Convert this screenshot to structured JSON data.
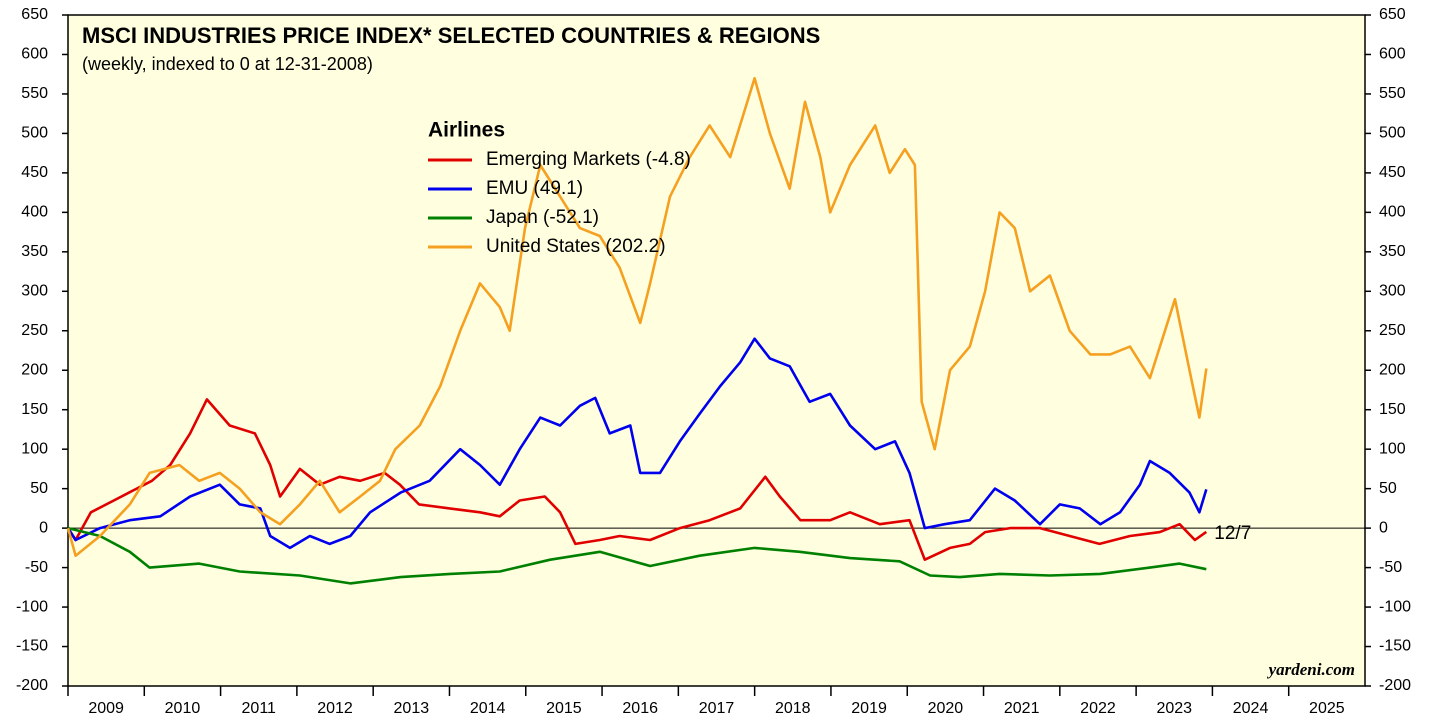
{
  "chart_data": {
    "type": "line",
    "title": "MSCI INDUSTRIES PRICE INDEX* SELECTED COUNTRIES & REGIONS",
    "subtitle": "(weekly, indexed to 0 at 12-31-2008)",
    "legend_title": "Airlines",
    "annotation": "12/7",
    "source": "yardeni.com",
    "xlim": [
      2009,
      2026
    ],
    "xticks": [
      2009,
      2010,
      2011,
      2012,
      2013,
      2014,
      2015,
      2016,
      2017,
      2018,
      2019,
      2020,
      2021,
      2022,
      2023,
      2024,
      2025
    ],
    "ylim": [
      -200,
      650
    ],
    "yticks": [
      -200,
      -150,
      -100,
      -50,
      0,
      50,
      100,
      150,
      200,
      250,
      300,
      350,
      400,
      450,
      500,
      550,
      600,
      650
    ],
    "legend": "top-center",
    "series": [
      {
        "name": "Emerging Markets (-4.8)",
        "color": "#e00000",
        "x": [
          2009.0,
          2009.1,
          2009.3,
          2009.6,
          2009.9,
          2010.1,
          2010.34,
          2010.6,
          2010.82,
          2011.12,
          2011.45,
          2011.65,
          2011.78,
          2012.04,
          2012.3,
          2012.56,
          2012.83,
          2013.15,
          2013.35,
          2013.6,
          2014.0,
          2014.4,
          2014.66,
          2014.92,
          2015.25,
          2015.45,
          2015.65,
          2015.97,
          2016.23,
          2016.63,
          2017.02,
          2017.41,
          2017.81,
          2018.14,
          2018.33,
          2018.6,
          2018.99,
          2019.25,
          2019.64,
          2020.03,
          2020.23,
          2020.56,
          2020.82,
          2021.02,
          2021.35,
          2021.74,
          2022.13,
          2022.52,
          2022.92,
          2023.31,
          2023.57,
          2023.77,
          2023.92
        ],
        "values": [
          0,
          -15,
          20,
          35,
          50,
          60,
          80,
          120,
          163,
          130,
          120,
          80,
          40,
          75,
          55,
          65,
          60,
          70,
          55,
          30,
          25,
          20,
          15,
          35,
          40,
          20,
          -20,
          -15,
          -10,
          -15,
          0,
          10,
          25,
          65,
          40,
          10,
          10,
          20,
          5,
          10,
          -40,
          -25,
          -20,
          -5,
          0,
          0,
          -10,
          -20,
          -10,
          -5,
          5,
          -15,
          -4.8
        ]
      },
      {
        "name": "EMU (49.1)",
        "color": "#0000ee",
        "x": [
          2009.0,
          2009.1,
          2009.42,
          2009.81,
          2010.21,
          2010.6,
          2010.99,
          2011.25,
          2011.52,
          2011.65,
          2011.91,
          2012.17,
          2012.43,
          2012.7,
          2012.96,
          2013.36,
          2013.74,
          2014.14,
          2014.4,
          2014.66,
          2014.92,
          2015.19,
          2015.45,
          2015.71,
          2015.91,
          2016.1,
          2016.37,
          2016.5,
          2016.76,
          2017.02,
          2017.28,
          2017.55,
          2017.81,
          2018.0,
          2018.2,
          2018.46,
          2018.72,
          2018.99,
          2019.25,
          2019.58,
          2019.84,
          2020.03,
          2020.23,
          2020.49,
          2020.82,
          2021.15,
          2021.41,
          2021.74,
          2022.0,
          2022.26,
          2022.53,
          2022.79,
          2023.05,
          2023.18,
          2023.44,
          2023.7,
          2023.83,
          2023.92
        ],
        "values": [
          0,
          -15,
          0,
          10,
          15,
          40,
          55,
          30,
          25,
          -10,
          -25,
          -10,
          -20,
          -10,
          20,
          45,
          60,
          100,
          80,
          55,
          100,
          140,
          130,
          155,
          165,
          120,
          130,
          70,
          70,
          110,
          145,
          180,
          210,
          240,
          215,
          205,
          160,
          170,
          130,
          100,
          110,
          70,
          0,
          5,
          10,
          50,
          35,
          5,
          30,
          25,
          5,
          20,
          55,
          85,
          70,
          45,
          20,
          49.1
        ]
      },
      {
        "name": "Japan (-52.1)",
        "color": "#008000",
        "x": [
          2009.0,
          2009.42,
          2009.81,
          2010.07,
          2010.72,
          2011.25,
          2012.04,
          2012.7,
          2013.36,
          2014.01,
          2014.66,
          2015.32,
          2015.97,
          2016.63,
          2017.28,
          2018.0,
          2018.59,
          2019.25,
          2019.9,
          2020.3,
          2020.69,
          2021.21,
          2021.87,
          2022.53,
          2023.18,
          2023.57,
          2023.92
        ],
        "values": [
          0,
          -10,
          -30,
          -50,
          -45,
          -55,
          -60,
          -70,
          -62,
          -58,
          -55,
          -40,
          -30,
          -48,
          -35,
          -25,
          -30,
          -38,
          -42,
          -60,
          -62,
          -58,
          -60,
          -58,
          -50,
          -45,
          -52.1
        ]
      },
      {
        "name": "United States (202.2)",
        "color": "#f5a020",
        "x": [
          2009.0,
          2009.1,
          2009.42,
          2009.81,
          2010.07,
          2010.46,
          2010.72,
          2010.99,
          2011.25,
          2011.52,
          2011.78,
          2012.04,
          2012.3,
          2012.56,
          2012.83,
          2013.09,
          2013.29,
          2013.61,
          2013.88,
          2014.14,
          2014.4,
          2014.66,
          2014.79,
          2014.99,
          2015.19,
          2015.45,
          2015.71,
          2015.97,
          2016.23,
          2016.5,
          2016.63,
          2016.89,
          2017.15,
          2017.41,
          2017.68,
          2018.0,
          2018.2,
          2018.46,
          2018.66,
          2018.86,
          2018.99,
          2019.25,
          2019.58,
          2019.77,
          2019.97,
          2020.1,
          2020.19,
          2020.36,
          2020.56,
          2020.82,
          2021.02,
          2021.21,
          2021.41,
          2021.61,
          2021.87,
          2022.13,
          2022.4,
          2022.66,
          2022.92,
          2023.18,
          2023.51,
          2023.7,
          2023.83,
          2023.92
        ],
        "values": [
          0,
          -35,
          -10,
          30,
          70,
          80,
          60,
          70,
          50,
          20,
          5,
          30,
          60,
          20,
          40,
          60,
          100,
          130,
          180,
          250,
          310,
          280,
          250,
          380,
          460,
          420,
          380,
          370,
          330,
          260,
          310,
          420,
          470,
          510,
          470,
          570,
          500,
          430,
          540,
          470,
          400,
          460,
          510,
          450,
          480,
          460,
          160,
          100,
          200,
          230,
          300,
          400,
          380,
          300,
          320,
          250,
          220,
          220,
          230,
          190,
          290,
          200,
          140,
          202.2
        ]
      }
    ]
  }
}
